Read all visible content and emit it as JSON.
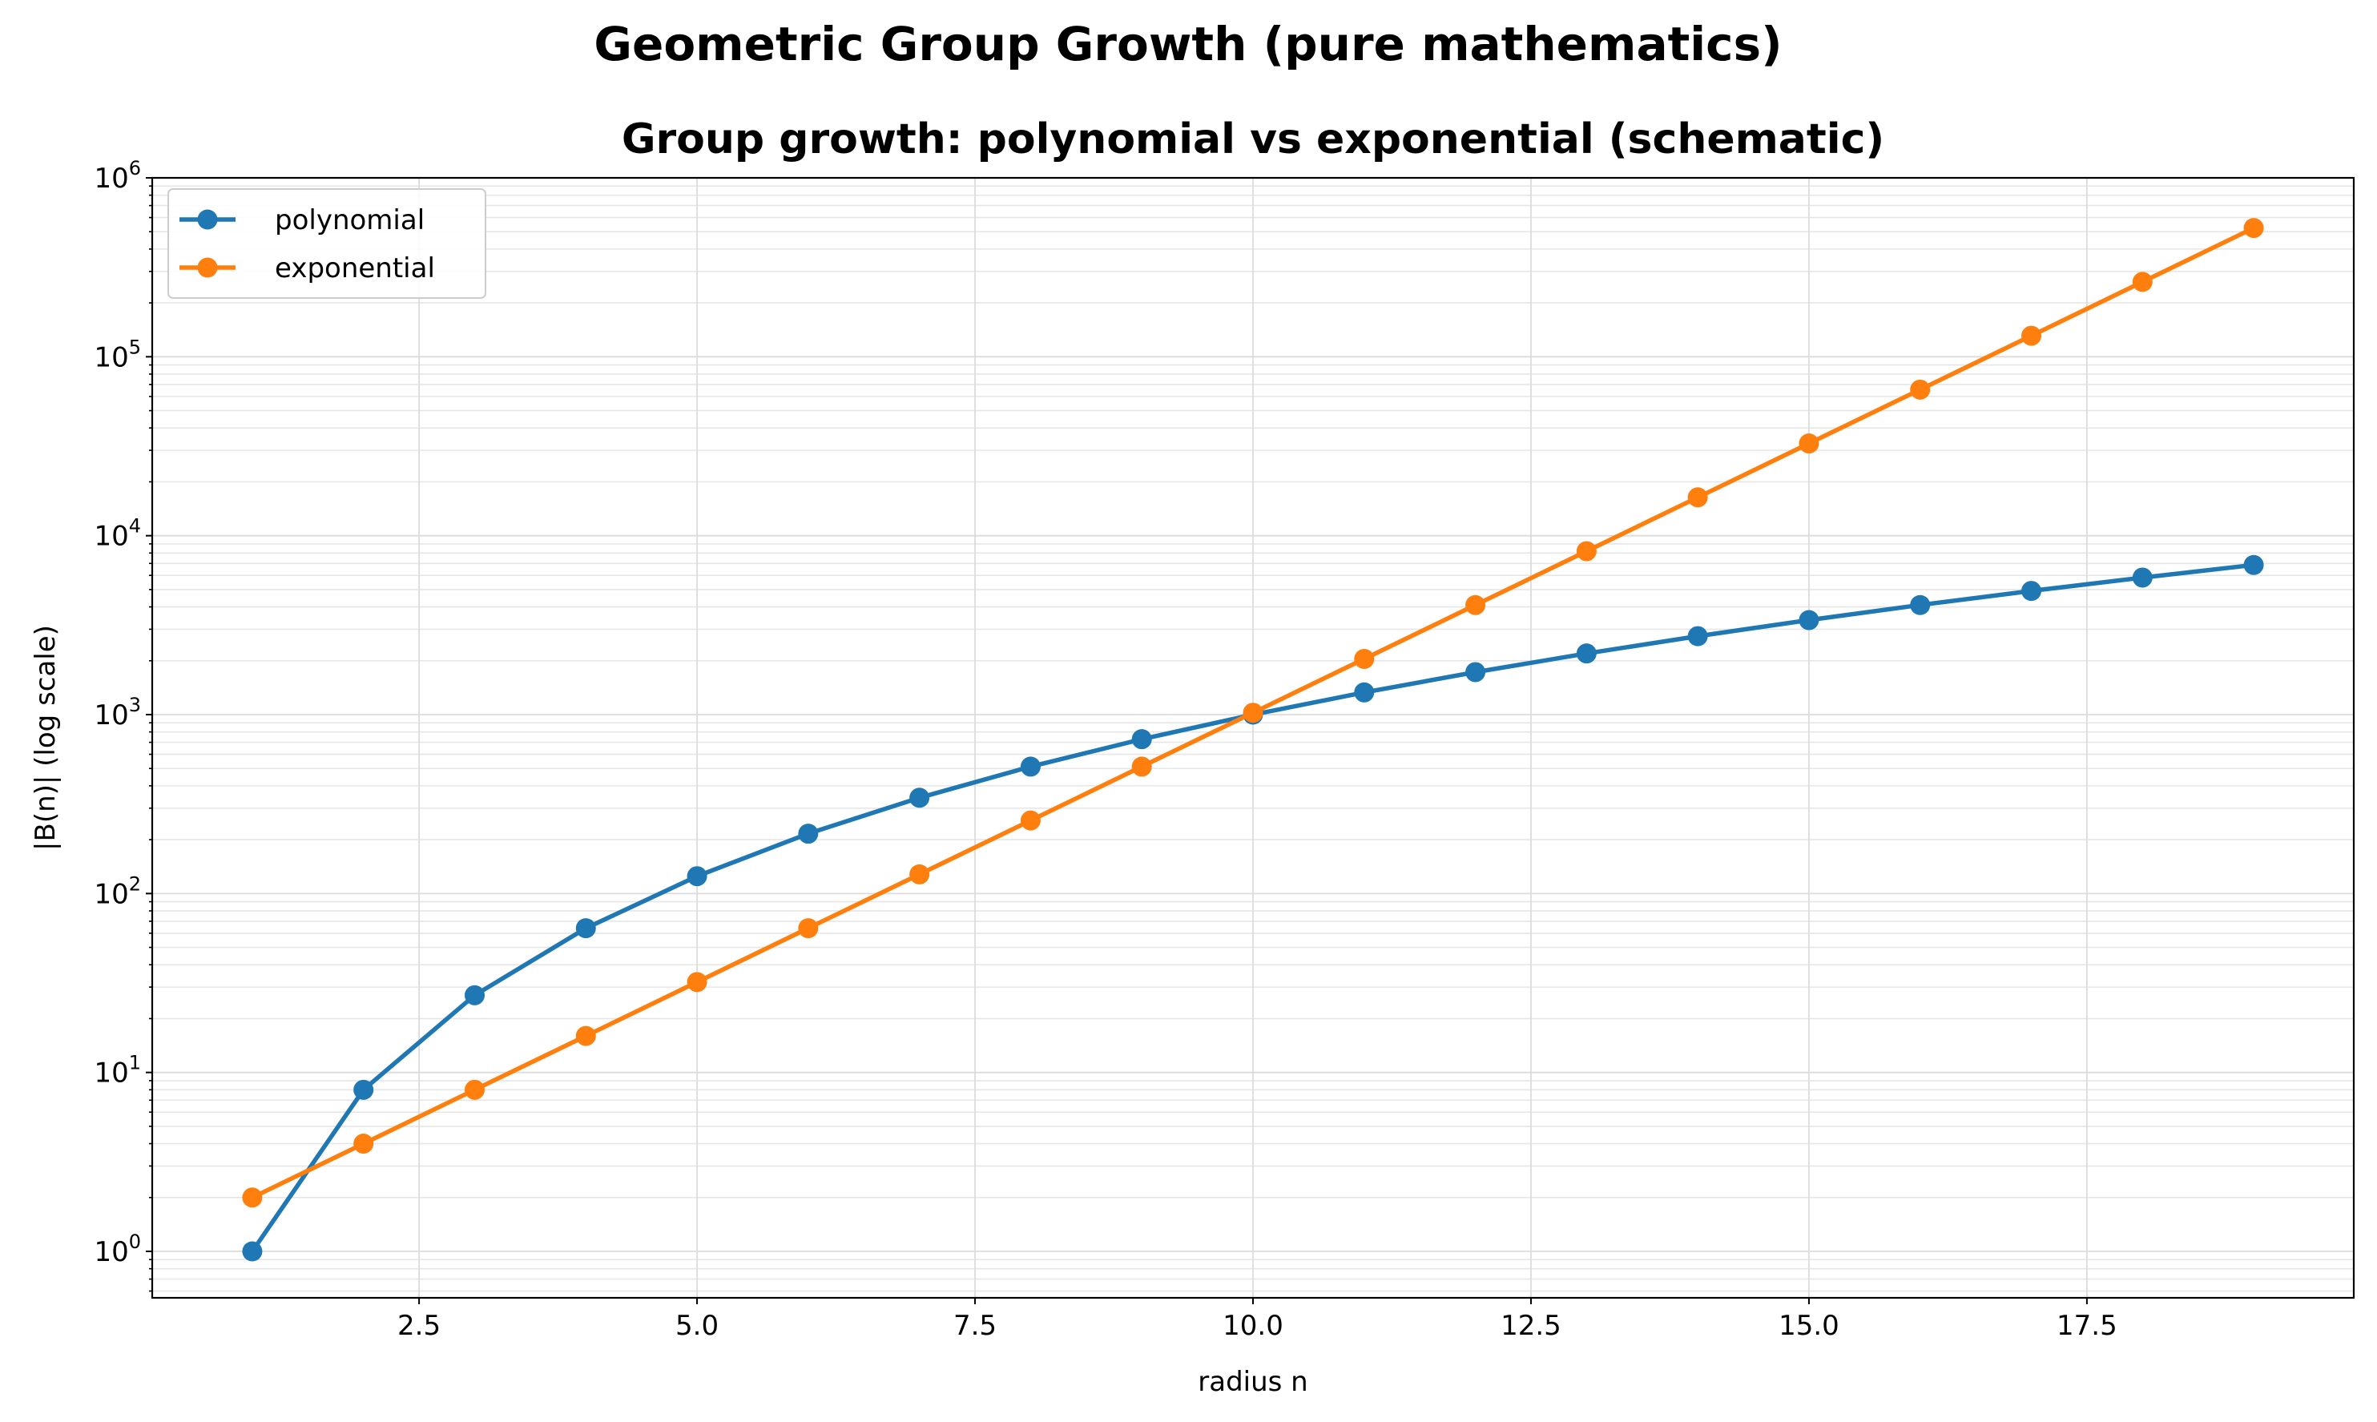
{
  "figure": {
    "suptitle": "Geometric Group Growth (pure mathematics)"
  },
  "chart_data": {
    "type": "line",
    "title": "Group growth: polynomial vs exponential (schematic)",
    "xlabel": "radius n",
    "ylabel": "|B(n)| (log scale)",
    "yscale": "log",
    "xlim": [
      0.1,
      19.9
    ],
    "ylim": [
      0.55,
      1000000
    ],
    "x_ticks": [
      2.5,
      5.0,
      7.5,
      10.0,
      12.5,
      15.0,
      17.5
    ],
    "x_tick_labels": [
      "2.5",
      "5.0",
      "7.5",
      "10.0",
      "12.5",
      "15.0",
      "17.5"
    ],
    "y_ticks": [
      1,
      10,
      100,
      1000,
      10000,
      100000,
      1000000
    ],
    "y_tick_labels": [
      {
        "base": "10",
        "exp": "0"
      },
      {
        "base": "10",
        "exp": "1"
      },
      {
        "base": "10",
        "exp": "2"
      },
      {
        "base": "10",
        "exp": "3"
      },
      {
        "base": "10",
        "exp": "4"
      },
      {
        "base": "10",
        "exp": "5"
      },
      {
        "base": "10",
        "exp": "6"
      }
    ],
    "grid": true,
    "legend_position": "top-left",
    "x": [
      1,
      2,
      3,
      4,
      5,
      6,
      7,
      8,
      9,
      10,
      11,
      12,
      13,
      14,
      15,
      16,
      17,
      18,
      19
    ],
    "series": [
      {
        "name": "polynomial",
        "color": "#1f77b4",
        "values": [
          1,
          8,
          27,
          64,
          125,
          216,
          343,
          512,
          729,
          1000,
          1331,
          1728,
          2197,
          2744,
          3375,
          4096,
          4913,
          5832,
          6859
        ]
      },
      {
        "name": "exponential",
        "color": "#ff7f0e",
        "values": [
          2,
          4,
          8,
          16,
          32,
          64,
          128,
          256,
          512,
          1024,
          2048,
          4096,
          8192,
          16384,
          32768,
          65536,
          131072,
          262144,
          524288
        ]
      }
    ]
  }
}
